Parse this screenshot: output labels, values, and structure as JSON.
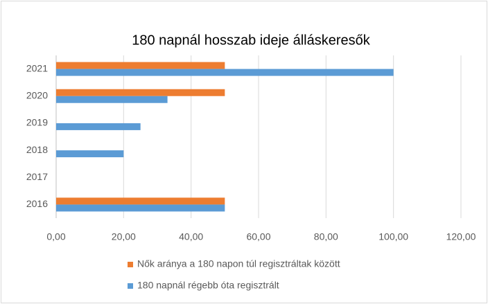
{
  "chart_data": {
    "type": "bar",
    "orientation": "horizontal",
    "title": "180 napnál hosszab ideje álláskeresők",
    "categories": [
      "2016",
      "2017",
      "2018",
      "2019",
      "2020",
      "2021"
    ],
    "series": [
      {
        "name": "Nők aránya a 180 napon túl regisztráltak között",
        "color": "#ed7d31",
        "values": [
          50,
          null,
          null,
          null,
          50,
          50
        ]
      },
      {
        "name": "180 napnál régebb óta regisztrált",
        "color": "#5b9bd5",
        "values": [
          50,
          null,
          20,
          25,
          33,
          100
        ]
      }
    ],
    "xlim": [
      0,
      120
    ],
    "xticks": [
      {
        "value": 0,
        "label": "0,00"
      },
      {
        "value": 20,
        "label": "20,00"
      },
      {
        "value": 40,
        "label": "40,00"
      },
      {
        "value": 60,
        "label": "60,00"
      },
      {
        "value": 80,
        "label": "80,00"
      },
      {
        "value": 100,
        "label": "100,00"
      },
      {
        "value": 120,
        "label": "120,00"
      }
    ],
    "grid": true,
    "legend": "bottom"
  }
}
